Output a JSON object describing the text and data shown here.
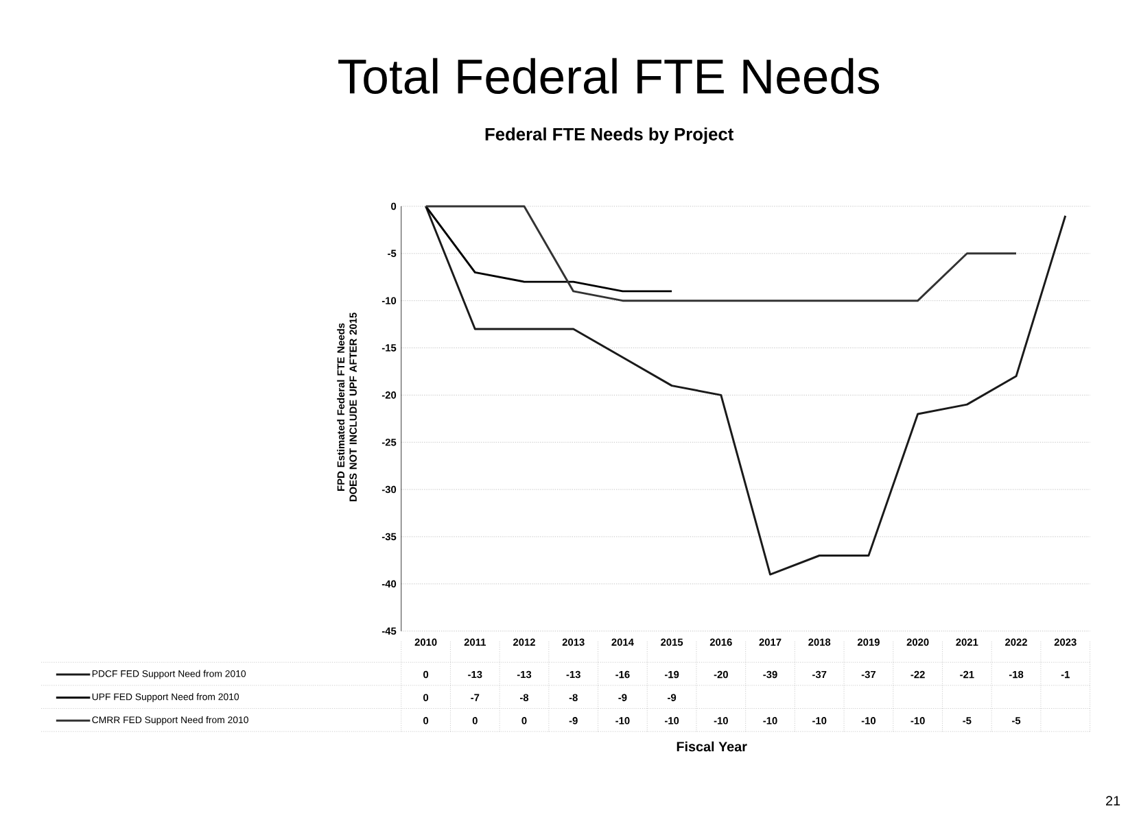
{
  "chart_data": {
    "type": "line",
    "title": "Total Federal FTE Needs",
    "subtitle": "Federal FTE Needs by Project",
    "ylabel": "FPD Estimated Federal FTE Needs DOES NOT INCLUDE UPF AFTER 2015",
    "categories": [
      "2010",
      "2011",
      "2012",
      "2013",
      "2014",
      "2015",
      "2016",
      "2017",
      "2018",
      "2019",
      "2020",
      "2021",
      "2022",
      "2023"
    ],
    "series": [
      {
        "name": "PDCF FED Support Need from 2010",
        "color": "#1a1a1a",
        "values": [
          0,
          -13,
          -13,
          -13,
          -16,
          -19,
          -20,
          -39,
          -37,
          -37,
          -22,
          -21,
          -18,
          -1
        ]
      },
      {
        "name": "UPF FED Support Need from 2010",
        "color": "#000000",
        "values": [
          0,
          -7,
          -8,
          -8,
          -9,
          -9,
          null,
          null,
          null,
          null,
          null,
          null,
          null,
          null
        ]
      },
      {
        "name": "CMRR  FED Support Need from 2010",
        "color": "#333333",
        "values": [
          0,
          0,
          0,
          -9,
          -10,
          -10,
          -10,
          -10,
          -10,
          -10,
          -10,
          -5,
          -5,
          null
        ]
      }
    ],
    "ylim": [
      -45,
      0
    ],
    "yticks": [
      -45,
      -40,
      -35,
      -30,
      -25,
      -20,
      -15,
      -10,
      -5,
      0
    ],
    "grid": "y",
    "legend": "bottom",
    "data_labels": true,
    "marker": "none",
    "line_style": "solid",
    "annotations": [
      "Fiscal Year",
      "21"
    ]
  }
}
